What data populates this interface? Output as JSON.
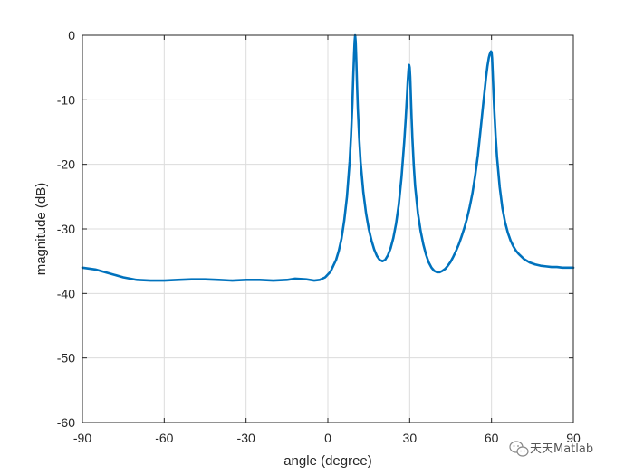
{
  "chart_data": {
    "type": "line",
    "title": "",
    "xlabel": "angle (degree)",
    "ylabel": "magnitude (dB)",
    "xlim": [
      -90,
      90
    ],
    "ylim": [
      -60,
      0
    ],
    "xticks": [
      -90,
      -60,
      -30,
      0,
      30,
      60,
      90
    ],
    "yticks": [
      0,
      -10,
      -20,
      -30,
      -40,
      -50,
      -60
    ],
    "xtick_labels": [
      "-90",
      "-60",
      "-30",
      "0",
      "30",
      "60",
      "90"
    ],
    "ytick_labels": [
      "0",
      "-10",
      "-20",
      "-30",
      "-40",
      "-50",
      "-60"
    ],
    "grid": true,
    "line_color": "#0072BD",
    "series": [
      {
        "x": [
          -90,
          -85,
          -80,
          -75,
          -70,
          -65,
          -60,
          -55,
          -50,
          -45,
          -40,
          -35,
          -30,
          -25,
          -20,
          -15,
          -12,
          -8,
          -5,
          -3,
          -1,
          1,
          3,
          4,
          5,
          6,
          7,
          8,
          8.5,
          9,
          9.3,
          9.6,
          9.8,
          10,
          10.2,
          10.4,
          10.7,
          11,
          11.5,
          12,
          13,
          14,
          15,
          16,
          17,
          18,
          19,
          20,
          21,
          22,
          23,
          24,
          25,
          26,
          27,
          28,
          28.5,
          29,
          29.3,
          29.6,
          29.8,
          30,
          30.2,
          30.4,
          30.7,
          31,
          31.5,
          32,
          33,
          34,
          35,
          36,
          37,
          38,
          39,
          40,
          41,
          42,
          43,
          44,
          45,
          46,
          47,
          48,
          49,
          50,
          51,
          52,
          53,
          54,
          55,
          56,
          57,
          58,
          58.5,
          59,
          59.3,
          59.6,
          59.8,
          60,
          60.2,
          60.4,
          60.7,
          61,
          61.5,
          62,
          63,
          64,
          65,
          66,
          67,
          68,
          69,
          70,
          72,
          74,
          76,
          78,
          80,
          82,
          84,
          86,
          88,
          90
        ],
        "y": [
          -36.0,
          -36.3,
          -36.9,
          -37.5,
          -37.9,
          -38.0,
          -38.0,
          -37.9,
          -37.8,
          -37.8,
          -37.9,
          -38.0,
          -37.9,
          -37.9,
          -38.0,
          -37.9,
          -37.7,
          -37.8,
          -38.0,
          -37.9,
          -37.5,
          -36.6,
          -34.8,
          -33.4,
          -31.5,
          -28.7,
          -25.0,
          -19.5,
          -15.5,
          -10.5,
          -6.5,
          -3.0,
          -1.0,
          0.0,
          -1.0,
          -3.5,
          -7.8,
          -11.5,
          -16.0,
          -19.6,
          -24.3,
          -27.6,
          -30.0,
          -31.8,
          -33.2,
          -34.2,
          -34.8,
          -35.0,
          -34.8,
          -34.1,
          -33.0,
          -31.4,
          -29.2,
          -26.2,
          -22.0,
          -16.5,
          -13.2,
          -9.5,
          -7.0,
          -5.2,
          -4.6,
          -5.0,
          -6.5,
          -9.0,
          -12.8,
          -16.0,
          -20.2,
          -23.4,
          -27.5,
          -30.3,
          -32.4,
          -34.0,
          -35.2,
          -36.0,
          -36.5,
          -36.7,
          -36.7,
          -36.5,
          -36.2,
          -35.7,
          -35.1,
          -34.3,
          -33.4,
          -32.4,
          -31.2,
          -29.9,
          -28.4,
          -26.6,
          -24.5,
          -21.8,
          -18.6,
          -14.6,
          -10.5,
          -6.5,
          -4.8,
          -3.5,
          -3.0,
          -2.7,
          -2.5,
          -2.6,
          -3.5,
          -5.5,
          -8.6,
          -11.5,
          -15.5,
          -18.8,
          -23.5,
          -26.8,
          -29.0,
          -30.6,
          -31.8,
          -32.7,
          -33.4,
          -33.9,
          -34.7,
          -35.2,
          -35.5,
          -35.7,
          -35.8,
          -35.9,
          -35.9,
          -36.0,
          -36.0,
          -36.0
        ]
      }
    ]
  },
  "watermark": {
    "icon": "wechat-icon",
    "text": "天天Matlab"
  }
}
